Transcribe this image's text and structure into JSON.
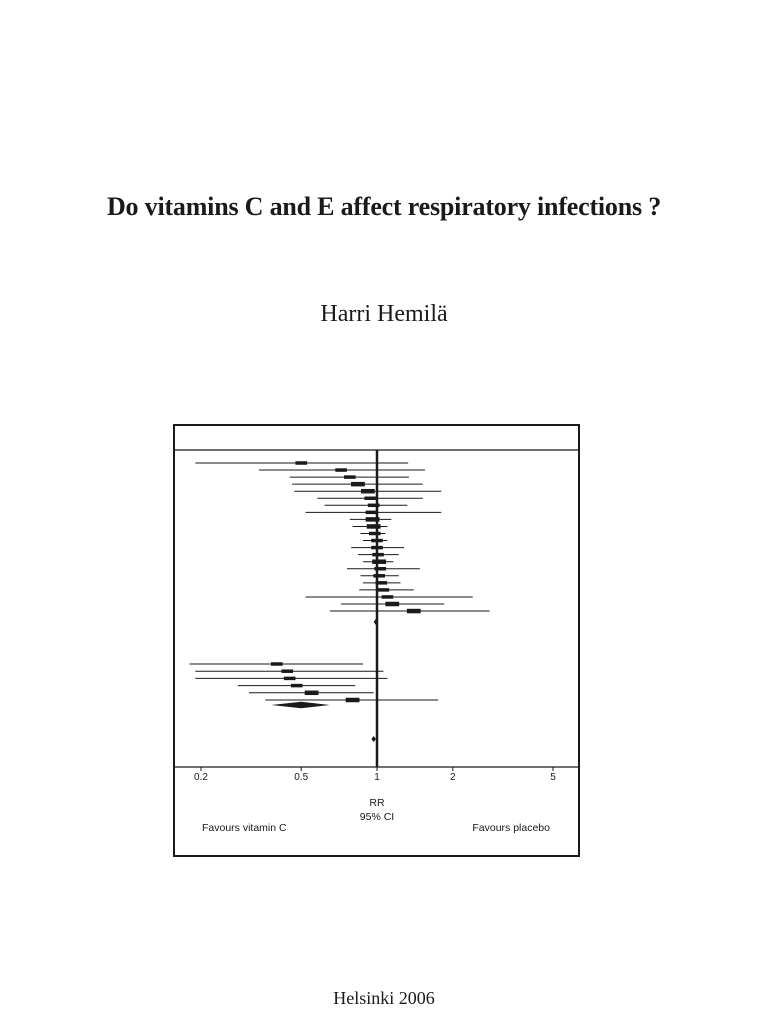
{
  "document": {
    "title": "Do vitamins C and E affect respiratory infections ?",
    "author": "Harri Hemilä",
    "place_year": "Helsinki 2006"
  },
  "chart_data": {
    "type": "forest",
    "x_scale": "log",
    "xlim": [
      0.17,
      6.5
    ],
    "reference_line": 1,
    "x_ticks": [
      {
        "value": 0.2,
        "label": "0.2"
      },
      {
        "value": 0.5,
        "label": "0.5"
      },
      {
        "value": 1,
        "label": "1"
      },
      {
        "value": 2,
        "label": "2"
      },
      {
        "value": 5,
        "label": "5"
      }
    ],
    "xlabel_line1": "RR",
    "xlabel_line2": "95% CI",
    "left_favours": "Favours vitamin C",
    "right_favours": "Favours placebo",
    "group1_studies": [
      {
        "est": 0.5,
        "lo": 0.19,
        "hi": 1.33,
        "w": 3
      },
      {
        "est": 0.72,
        "lo": 0.34,
        "hi": 1.55,
        "w": 3
      },
      {
        "est": 0.78,
        "lo": 0.45,
        "hi": 1.34,
        "w": 3
      },
      {
        "est": 0.84,
        "lo": 0.46,
        "hi": 1.52,
        "w": 4
      },
      {
        "est": 0.92,
        "lo": 0.47,
        "hi": 1.8,
        "w": 4
      },
      {
        "est": 0.94,
        "lo": 0.58,
        "hi": 1.52,
        "w": 3
      },
      {
        "est": 0.97,
        "lo": 0.62,
        "hi": 1.32,
        "w": 3
      },
      {
        "est": 0.95,
        "lo": 0.52,
        "hi": 1.8,
        "w": 3
      },
      {
        "est": 0.96,
        "lo": 0.78,
        "hi": 1.14,
        "w": 4
      },
      {
        "est": 0.97,
        "lo": 0.8,
        "hi": 1.1,
        "w": 4
      },
      {
        "est": 0.98,
        "lo": 0.86,
        "hi": 1.08,
        "w": 3
      },
      {
        "est": 1.0,
        "lo": 0.88,
        "hi": 1.1,
        "w": 3
      },
      {
        "est": 1.0,
        "lo": 0.79,
        "hi": 1.28,
        "w": 3
      },
      {
        "est": 1.01,
        "lo": 0.84,
        "hi": 1.22,
        "w": 3
      },
      {
        "est": 1.02,
        "lo": 0.88,
        "hi": 1.16,
        "w": 4
      },
      {
        "est": 1.03,
        "lo": 0.76,
        "hi": 1.48,
        "w": 3
      },
      {
        "est": 1.02,
        "lo": 0.86,
        "hi": 1.22,
        "w": 3
      },
      {
        "est": 1.04,
        "lo": 0.88,
        "hi": 1.24,
        "w": 3
      },
      {
        "est": 1.06,
        "lo": 0.85,
        "hi": 1.4,
        "w": 3
      },
      {
        "est": 1.1,
        "lo": 0.52,
        "hi": 2.4,
        "w": 3
      },
      {
        "est": 1.15,
        "lo": 0.72,
        "hi": 1.85,
        "w": 4
      },
      {
        "est": 1.4,
        "lo": 0.65,
        "hi": 2.8,
        "w": 4
      }
    ],
    "group1_pooled": {
      "est": 0.99,
      "lo": 0.97,
      "hi": 1.0
    },
    "group2_studies": [
      {
        "est": 0.4,
        "lo": 0.18,
        "hi": 0.88,
        "w": 3
      },
      {
        "est": 0.44,
        "lo": 0.19,
        "hi": 1.06,
        "w": 3
      },
      {
        "est": 0.45,
        "lo": 0.19,
        "hi": 1.1,
        "w": 3
      },
      {
        "est": 0.48,
        "lo": 0.28,
        "hi": 0.82,
        "w": 3
      },
      {
        "est": 0.55,
        "lo": 0.31,
        "hi": 0.97,
        "w": 4
      },
      {
        "est": 0.8,
        "lo": 0.36,
        "hi": 1.75,
        "w": 4
      }
    ],
    "group2_pooled": {
      "est": 0.5,
      "lo": 0.38,
      "hi": 0.65
    },
    "overall_pooled": {
      "est": 0.97,
      "lo": 0.95,
      "hi": 0.99
    }
  }
}
